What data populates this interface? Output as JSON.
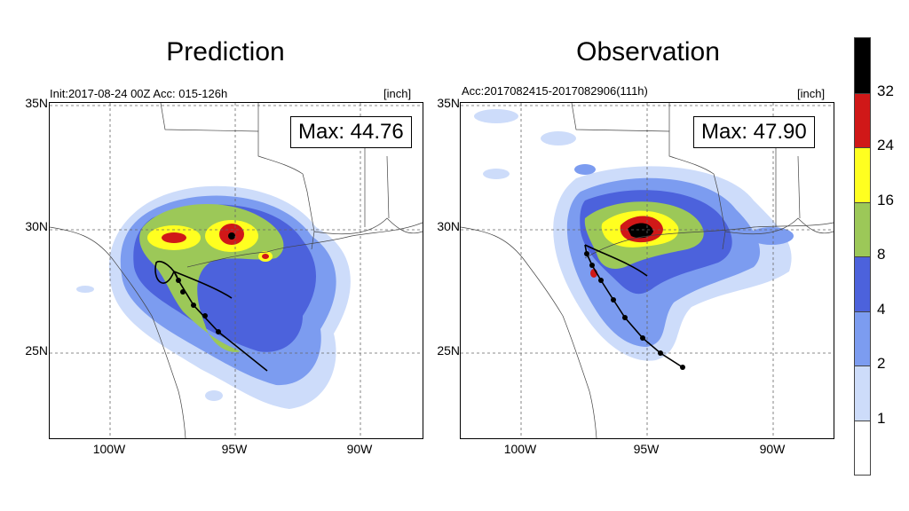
{
  "panels": [
    {
      "title": "Prediction",
      "subtitle_left": "Init:2017-08-24 00Z  Acc: 015-126h",
      "subtitle_right": "[inch]",
      "max_label": "Max: 44.76"
    },
    {
      "title": "Observation",
      "subtitle_left": "Acc:2017082415-2017082906(111h)",
      "subtitle_right": "[inch]",
      "max_label": "Max: 47.90"
    }
  ],
  "axes": {
    "lat_labels": [
      "35N",
      "30N",
      "25N"
    ],
    "lon_labels": [
      "100W",
      "95W",
      "90W"
    ]
  },
  "colorbar": {
    "levels": [
      "32",
      "24",
      "16",
      "8",
      "4",
      "2",
      "1"
    ],
    "colors": [
      "#000000",
      "#d01818",
      "#ffff20",
      "#9cc858",
      "#4c62dc",
      "#7c9cf0",
      "#cddcfa",
      "#ffffff"
    ]
  }
}
